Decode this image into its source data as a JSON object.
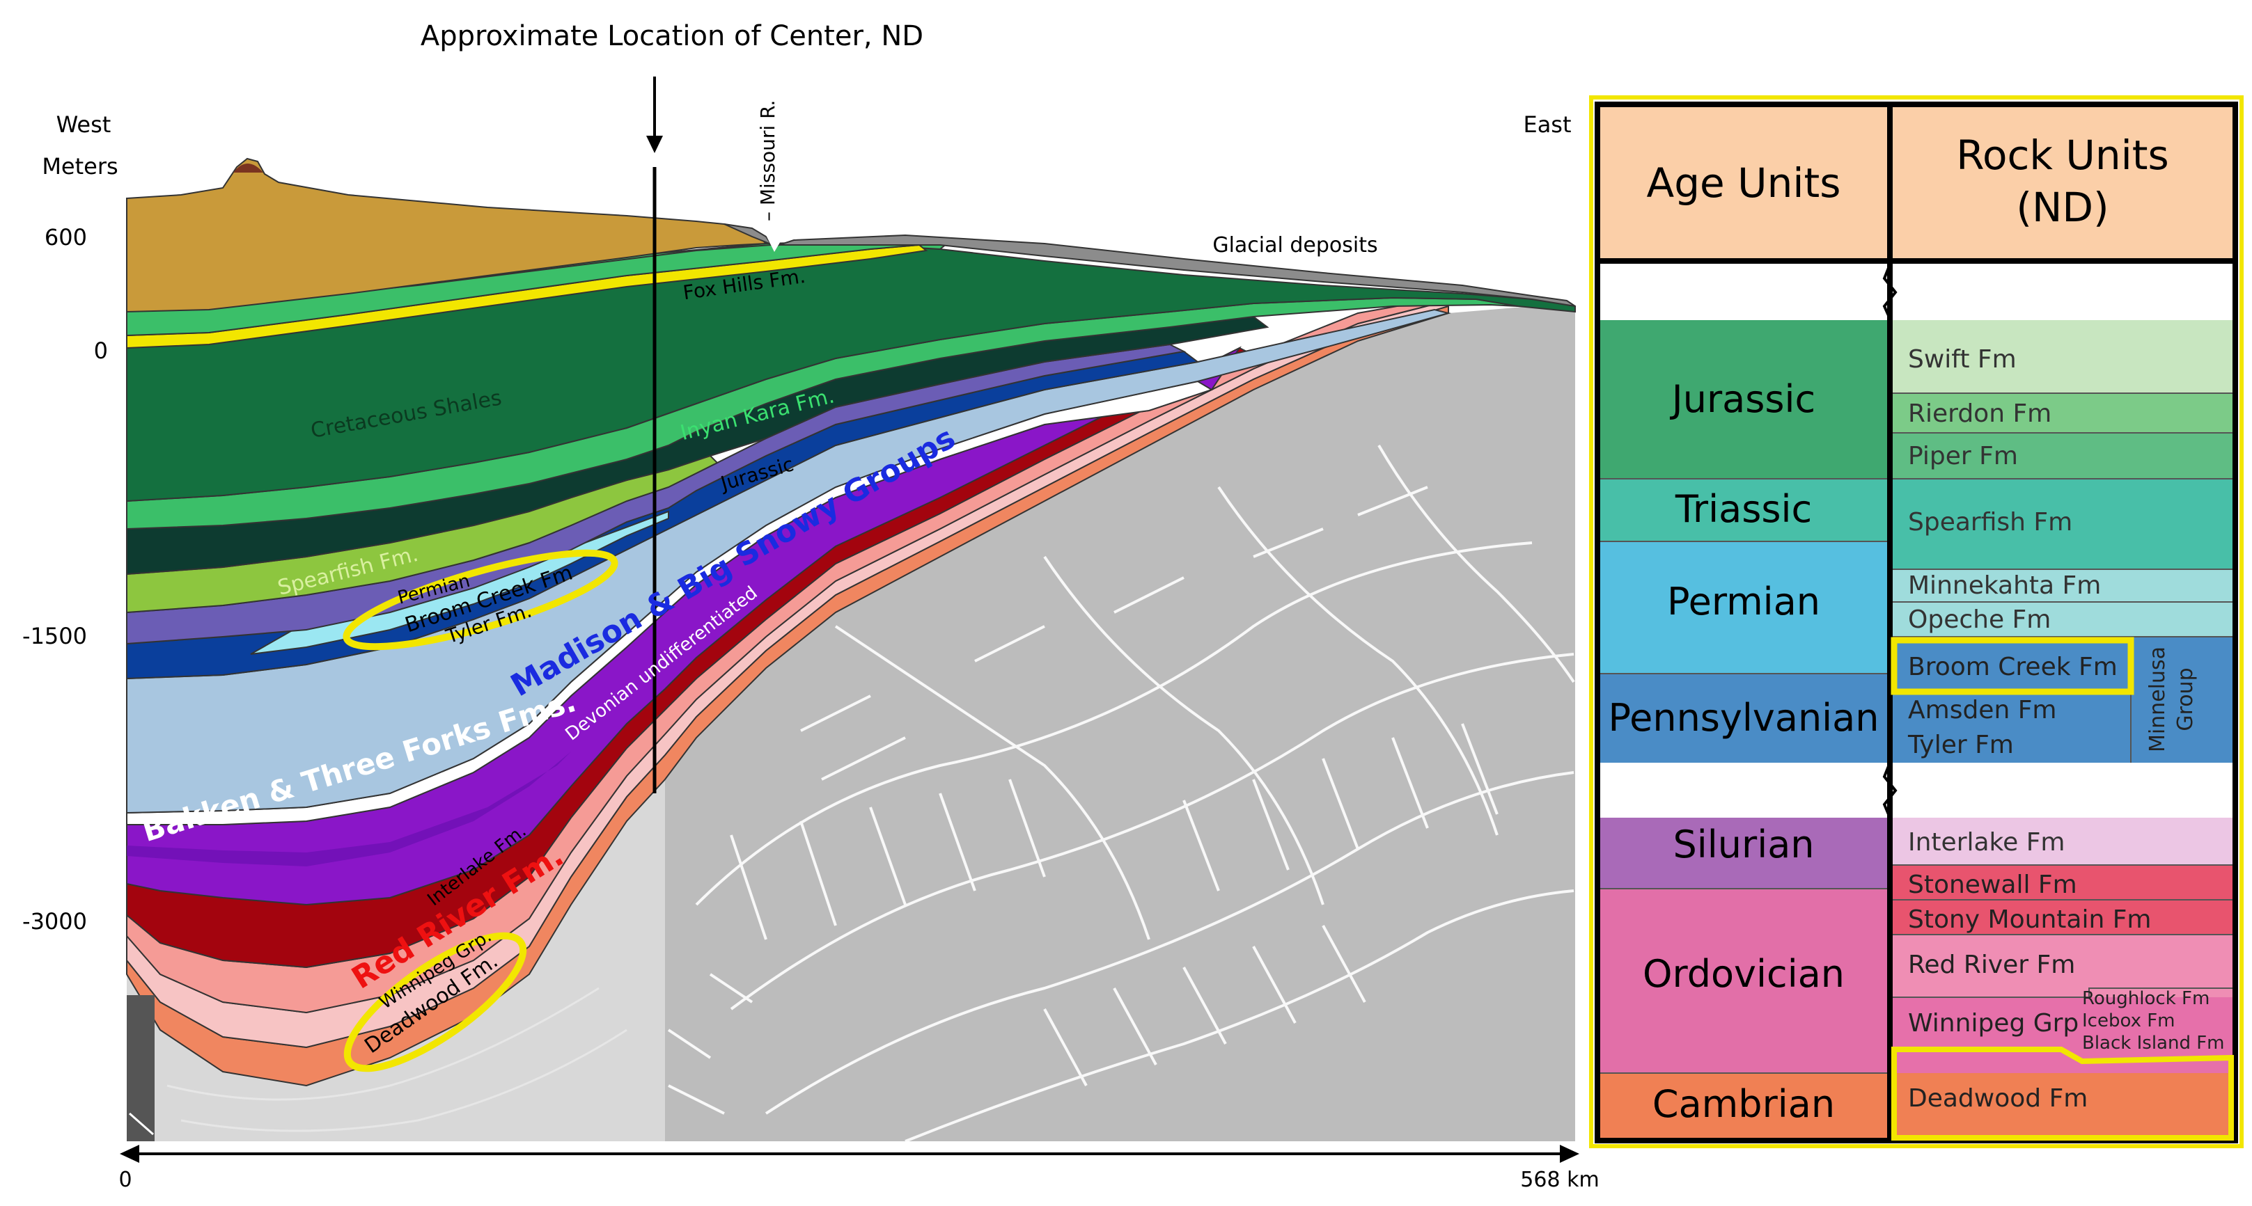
{
  "cross_section": {
    "top_label": "Approximate Location of Center, ND",
    "west": "West",
    "east": "East",
    "meters": "Meters",
    "depth_ticks": [
      "600",
      "0",
      "-1500",
      "-3000"
    ],
    "missouri": "– Missouri R.",
    "glacial": "Glacial deposits",
    "fox_hills": "Fox Hills Fm.",
    "cret_shales": "Cretaceous Shales",
    "inyan_kara": "Inyan Kara Fm.",
    "jurassic": "Jurassic",
    "spearfish": "Spearfish Fm.",
    "permian": "Permian",
    "broom_creek": "Broom Creek Fm",
    "tyler": "Tyler Fm.",
    "madison": "Madison & Big Snowy Groups",
    "bakken": "Bakken & Three Forks Fms.",
    "devonian": "Devonian undifferentiated",
    "interlake": "Interlake Fm.",
    "red_river": "Red River Fm.",
    "winnipeg": "Winnipeg Grp.",
    "deadwood": "Deadwood Fm.",
    "scale_start": "0",
    "scale_end": "568 km"
  },
  "column": {
    "header_age": "Age Units",
    "header_rock_line1": "Rock Units",
    "header_rock_line2": "(ND)",
    "ages": [
      "Jurassic",
      "Triassic",
      "Permian",
      "Pennsylvanian",
      "Silurian",
      "Ordovician",
      "Cambrian"
    ],
    "rocks": {
      "swift": "Swift Fm",
      "rierdon": "Rierdon Fm",
      "piper": "Piper Fm",
      "spearfish": "Spearfish Fm",
      "minnekahta": "Minnekahta Fm",
      "opeche": "Opeche Fm",
      "broom_creek": "Broom Creek Fm",
      "amsden": "Amsden Fm",
      "tyler": "Tyler Fm",
      "minnelusa_1": "Minnelusa",
      "minnelusa_2": "Group",
      "interlake": "Interlake Fm",
      "stonewall": "Stonewall Fm",
      "stony_mountain": "Stony Mountain Fm",
      "red_river": "Red River Fm",
      "winnipeg": "Winnipeg Grp",
      "roughlock": "Roughlock Fm",
      "icebox": "Icebox Fm",
      "black_island": "Black Island Fm",
      "deadwood": "Deadwood Fm"
    }
  },
  "colors": {
    "highlight": "#f2e600",
    "surface_brown": "#c99a3a",
    "dark_green": "#14703f",
    "light_green": "#3bbf69",
    "madison_blue": "#a8c6e0",
    "purple": "#8a16c8",
    "dark_red": "#a3040e",
    "salmon": "#f59b96",
    "orange": "#f08660",
    "basement_grey": "#bfbfbf"
  }
}
